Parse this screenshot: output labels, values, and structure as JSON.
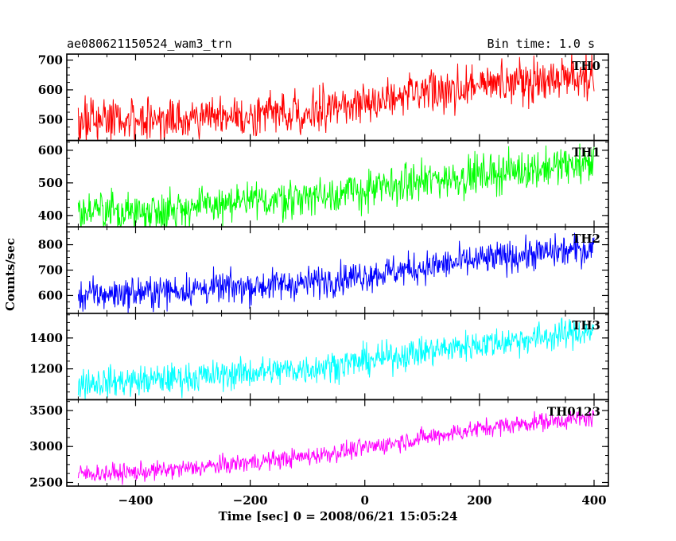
{
  "header": {
    "left_title": "ae080621150524_wam3_trn",
    "right_title": "Bin time: 1.0 s"
  },
  "chart_data": {
    "type": "line",
    "title": "ae080621150524_wam3_trn",
    "subtitle": "Bin time: 1.0 s",
    "xlabel": "Time [sec] 0 = 2008/06/21 15:05:24",
    "ylabel": "Counts/sec",
    "xlim": [
      -520,
      425
    ],
    "xticks": [
      -400,
      -200,
      0,
      200,
      400
    ],
    "bin_time_s": 1.0,
    "grid": false,
    "legend": "panel labels at top-right of each panel",
    "panels": [
      {
        "name": "TH0",
        "color": "#ff0000",
        "ylim": [
          430,
          720
        ],
        "yticks": [
          500,
          600,
          700
        ],
        "x": [
          -500,
          -400,
          -300,
          -200,
          -100,
          0,
          100,
          200,
          300,
          400
        ],
        "values": [
          495,
          500,
          505,
          515,
          530,
          555,
          585,
          615,
          635,
          650
        ],
        "scatter": 35
      },
      {
        "name": "TH1",
        "color": "#00ff00",
        "ylim": [
          365,
          630
        ],
        "yticks": [
          400,
          500,
          600
        ],
        "x": [
          -500,
          -400,
          -300,
          -200,
          -100,
          0,
          100,
          200,
          300,
          400
        ],
        "values": [
          410,
          412,
          425,
          440,
          460,
          475,
          505,
          525,
          545,
          560
        ],
        "scatter": 30
      },
      {
        "name": "TH2",
        "color": "#0000ff",
        "ylim": [
          530,
          870
        ],
        "yticks": [
          600,
          700,
          800
        ],
        "x": [
          -500,
          -400,
          -300,
          -200,
          -100,
          0,
          100,
          200,
          300,
          400
        ],
        "values": [
          600,
          610,
          625,
          635,
          650,
          680,
          710,
          740,
          765,
          785
        ],
        "scatter": 32
      },
      {
        "name": "TH3",
        "color": "#00ffff",
        "ylim": [
          1000,
          1560
        ],
        "yticks": [
          1200,
          1400
        ],
        "x": [
          -500,
          -400,
          -300,
          -200,
          -100,
          0,
          100,
          200,
          300,
          400
        ],
        "values": [
          1110,
          1120,
          1145,
          1175,
          1200,
          1250,
          1310,
          1360,
          1400,
          1450
        ],
        "scatter": 50
      },
      {
        "name": "TH0123",
        "color": "#ff00ff",
        "ylim": [
          2450,
          3650
        ],
        "yticks": [
          2500,
          3000,
          3500
        ],
        "x": [
          -500,
          -400,
          -300,
          -200,
          -100,
          0,
          100,
          200,
          300,
          400
        ],
        "values": [
          2620,
          2640,
          2700,
          2780,
          2860,
          2980,
          3120,
          3250,
          3340,
          3400
        ],
        "scatter": 65
      }
    ]
  }
}
